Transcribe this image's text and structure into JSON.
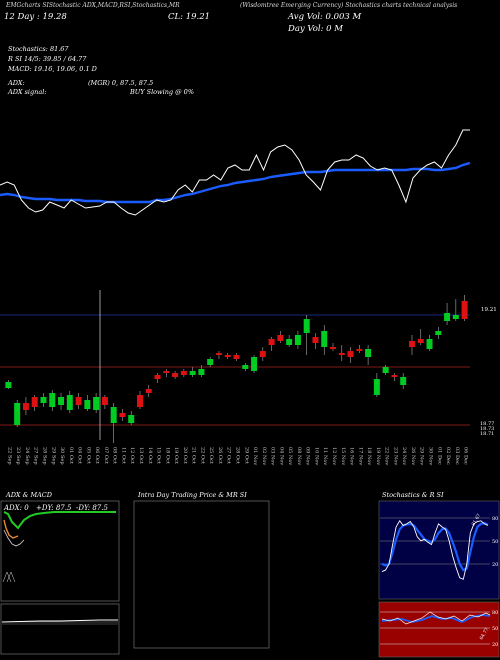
{
  "header": {
    "ticker_line": "(Wisdomtree Emerging Currency) Stochastics charts technical analysis",
    "top_left": "EMGcharts SIStochastic",
    "top_indicators": "ADX,MACD,RSI,Stochastics,MR",
    "open_label": "12 Day : 19.28",
    "close_label": "CL: 19.21",
    "avg_vol": "Avg Vol: 0.003 M",
    "day_vol": "Day Vol: 0   M",
    "stoch_line": "Stochastics: 81.67",
    "rsi_line": "R    SI 14/5: 39.85 / 64.77",
    "macd_line": "MACD: 19.16,  19.06, 0.1 D",
    "adx_line": "ADX:",
    "adx_signal": "ADX  signal:",
    "mgr_line": "(MGR) 0,  87.5,  87.5",
    "buy_line": "BUY Slowing @ 0%"
  },
  "chart_data": [
    {
      "type": "line",
      "name": "price-vs-ma",
      "series": [
        {
          "values": [
            0.55,
            0.52,
            0.55,
            0.7,
            0.78,
            0.82,
            0.8,
            0.72,
            0.75,
            0.78,
            0.7,
            0.74,
            0.78,
            0.77,
            0.76,
            0.72,
            0.72,
            0.78,
            0.83,
            0.85,
            0.8,
            0.75,
            0.7,
            0.72,
            0.7,
            0.6,
            0.55,
            0.62,
            0.5,
            0.5,
            0.45,
            0.5,
            0.38,
            0.35,
            0.4,
            0.4,
            0.25,
            0.4,
            0.22,
            0.17,
            0.15,
            0.2,
            0.3,
            0.45,
            0.52,
            0.6,
            0.4,
            0.32,
            0.3,
            0.3,
            0.25,
            0.28,
            0.36,
            0.4,
            0.38,
            0.4,
            0.55,
            0.72,
            0.48,
            0.4,
            0.35,
            0.32,
            0.38,
            0.25,
            0.15,
            0.0,
            0.0
          ]
        },
        {
          "values": [
            0.65,
            0.64,
            0.65,
            0.67,
            0.68,
            0.69,
            0.69,
            0.69,
            0.7,
            0.7,
            0.7,
            0.7,
            0.71,
            0.71,
            0.71,
            0.72,
            0.72,
            0.72,
            0.72,
            0.72,
            0.72,
            0.72,
            0.7,
            0.7,
            0.69,
            0.67,
            0.65,
            0.64,
            0.62,
            0.6,
            0.58,
            0.56,
            0.55,
            0.53,
            0.52,
            0.51,
            0.5,
            0.49,
            0.47,
            0.46,
            0.45,
            0.44,
            0.43,
            0.42,
            0.42,
            0.42,
            0.41,
            0.4,
            0.4,
            0.4,
            0.4,
            0.4,
            0.4,
            0.4,
            0.4,
            0.4,
            0.4,
            0.4,
            0.39,
            0.39,
            0.39,
            0.4,
            0.4,
            0.39,
            0.38,
            0.35,
            0.33
          ]
        }
      ]
    },
    {
      "type": "candlestick",
      "name": "price-candles",
      "price_labels": [
        "19.21",
        "18.77",
        "18.73",
        "18.71"
      ],
      "dates": [
        "22 Sep",
        "23 Sep",
        "24 Sep",
        "27 Sep",
        "28 Sep",
        "29 Sep",
        "30 Sep",
        "01 Oct",
        "04 Oct",
        "05 Oct",
        "06 Oct",
        "07 Oct",
        "08 Oct",
        "11 Oct",
        "12 Oct",
        "13 Oct",
        "14 Oct",
        "15 Oct",
        "18 Oct",
        "19 Oct",
        "20 Oct",
        "21 Oct",
        "22 Oct",
        "25 Oct",
        "26 Oct",
        "27 Oct",
        "28 Oct",
        "29 Oct",
        "01 Nov",
        "02 Nov",
        "03 Nov",
        "04 Nov",
        "05 Nov",
        "08 Nov",
        "09 Nov",
        "10 Nov",
        "11 Nov",
        "12 Nov",
        "15 Nov",
        "16 Nov",
        "17 Nov",
        "18 Nov",
        "19 Nov",
        "22 Nov",
        "23 Nov",
        "24 Nov",
        "26 Nov",
        "29 Nov",
        "30 Nov",
        "01 Dec",
        "02 Dec",
        "03 Dec",
        "06 Dec"
      ]
    },
    {
      "type": "line",
      "name": "adx-macd",
      "title": "ADX  & MACD",
      "labels": [
        "ADX: 0",
        "+DY: 87.5",
        "-DY: 87.5"
      ]
    },
    {
      "type": "line",
      "name": "intraday",
      "title": "Intra Day Trading Price  & MR         SI"
    },
    {
      "type": "line",
      "name": "stochastics-rsi",
      "title": "Stochastics & R          SI",
      "stoch_ticks": [
        "80",
        "50",
        "20"
      ],
      "stoch_tag": "81.67",
      "rsi_ticks": [
        "80",
        "50",
        "20"
      ],
      "rsi_tag": "64.77",
      "stoch_k": [
        20,
        22,
        30,
        55,
        78,
        86,
        80,
        82,
        85,
        78,
        65,
        60,
        62,
        58,
        55,
        70,
        82,
        78,
        75,
        60,
        40,
        25,
        12,
        10,
        30,
        70,
        82,
        85,
        86,
        82,
        80
      ],
      "stoch_d": [
        30,
        28,
        30,
        45,
        62,
        75,
        80,
        81,
        82,
        80,
        74,
        68,
        62,
        60,
        58,
        62,
        70,
        75,
        76,
        70,
        58,
        45,
        30,
        22,
        24,
        45,
        65,
        78,
        82,
        83,
        81
      ]
    }
  ],
  "colors": {
    "background": "#000000",
    "ma_line": "#1a5cff",
    "price_line": "#ffffff",
    "up": "#00cc22",
    "down": "#dd1111",
    "grid_red": "#aa2222",
    "grid_blue": "#2233aa",
    "stoch_bg": "#000044",
    "rsi_bg": "#990000",
    "adx_green": "#22cc22",
    "adx_orange": "#ee8833"
  }
}
